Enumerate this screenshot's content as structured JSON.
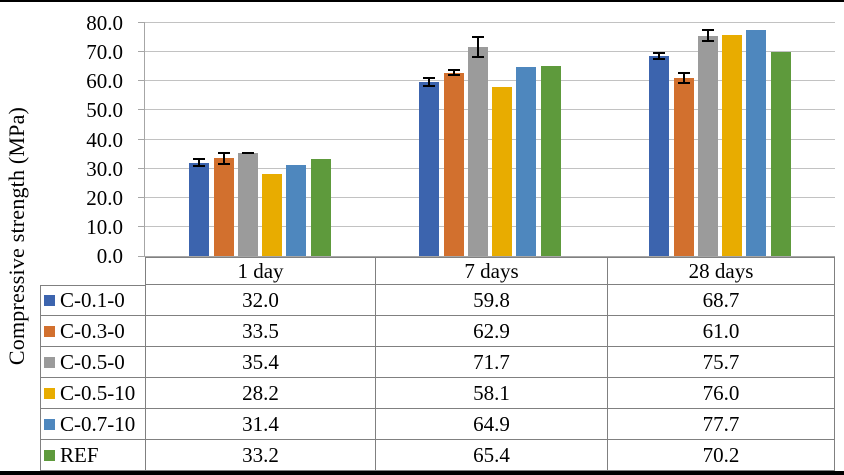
{
  "figure": {
    "background": "#ffffff",
    "border_color": "#000000"
  },
  "chart_data": {
    "type": "bar",
    "title": "",
    "ylabel": "Compressive strength (MPa)",
    "xlabel": "",
    "ylim": [
      0,
      80
    ],
    "ytick_step": 10,
    "ytick_labels": [
      "0.0",
      "10.0",
      "20.0",
      "30.0",
      "40.0",
      "50.0",
      "60.0",
      "70.0",
      "80.0"
    ],
    "grid": true,
    "error_bars": true,
    "legend_position": "data-table-left",
    "categories": [
      "1 day",
      "7 days",
      "28 days"
    ],
    "series": [
      {
        "name": "C-0.1-0",
        "color": "#3C64AE",
        "values": [
          32.0,
          59.8,
          68.7
        ],
        "errors": [
          1.6,
          1.7,
          1.3
        ]
      },
      {
        "name": "C-0.3-0",
        "color": "#D2702E",
        "values": [
          33.5,
          62.9,
          61.0
        ],
        "errors": [
          2.3,
          1.2,
          2.1
        ]
      },
      {
        "name": "C-0.5-0",
        "color": "#9B9B9B",
        "values": [
          35.4,
          71.7,
          75.7
        ],
        "errors": [
          0.35,
          3.8,
          2.2
        ]
      },
      {
        "name": "C-0.5-10",
        "color": "#E8AC00",
        "values": [
          28.2,
          58.1,
          76.0
        ],
        "errors": [
          0,
          0,
          0
        ]
      },
      {
        "name": "C-0.7-10",
        "color": "#4E87BE",
        "values": [
          31.4,
          64.9,
          77.7
        ],
        "errors": [
          0,
          0,
          0
        ]
      },
      {
        "name": "REF",
        "color": "#5E9A3C",
        "values": [
          33.2,
          65.4,
          70.2
        ],
        "errors": [
          0,
          0,
          0
        ]
      }
    ]
  },
  "table": {
    "corner_label": "",
    "value_format_decimals": 1
  },
  "colors": {
    "gridline": "#C2C2C2",
    "axis_line": "#A6A6A6",
    "table_border": "#808080",
    "error_bar": "#000000",
    "text": "#000000"
  }
}
